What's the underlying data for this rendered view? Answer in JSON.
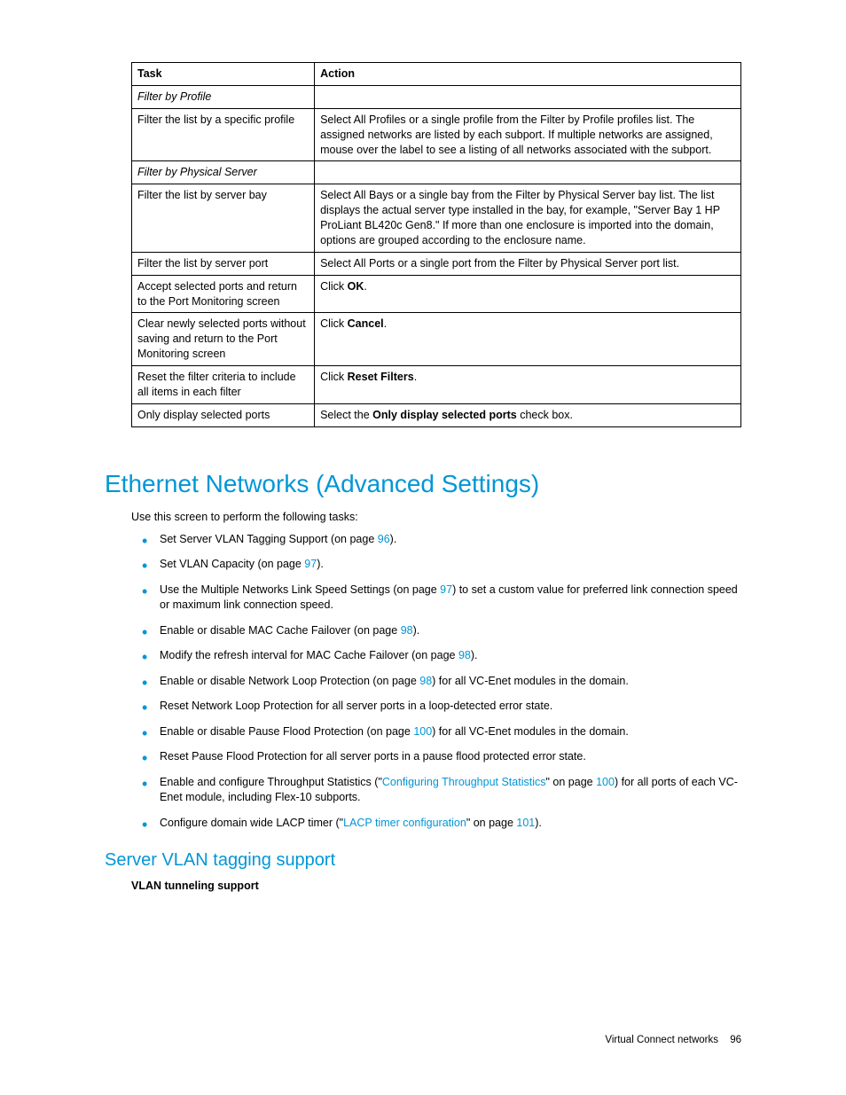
{
  "colors": {
    "accent": "#0096d6",
    "text": "#000000",
    "background": "#ffffff",
    "border": "#000000"
  },
  "typography": {
    "body_font_size_pt": 9.5,
    "h1_font_size_pt": 21,
    "h2_font_size_pt": 15,
    "font_family": "Arial"
  },
  "table": {
    "headers": {
      "task": "Task",
      "action": "Action"
    },
    "rows": [
      {
        "task": "Filter by Profile",
        "task_italic": true,
        "action": ""
      },
      {
        "task": "Filter the list by a specific profile",
        "action": "Select All Profiles or a single profile from the Filter by Profile profiles list. The assigned networks are listed by each subport. If multiple networks are assigned, mouse over the label to see a listing of all networks associated with the subport."
      },
      {
        "task": "Filter by Physical Server",
        "task_italic": true,
        "action": ""
      },
      {
        "task": "Filter the list by server bay",
        "action": "Select All Bays or a single bay from the Filter by Physical Server bay list. The list displays the actual server type installed in the bay, for example, \"Server Bay 1 HP ProLiant BL420c Gen8.\" If more than one enclosure is imported into the domain, options are grouped according to the enclosure name."
      },
      {
        "task": "Filter the list by server port",
        "action": "Select All Ports or a single port from the Filter by Physical Server port list."
      },
      {
        "task": "Accept selected ports and return to the Port Monitoring screen",
        "action_pre": "Click ",
        "action_bold": "OK",
        "action_post": "."
      },
      {
        "task": "Clear newly selected ports without saving and return to the Port Monitoring screen",
        "action_pre": "Click ",
        "action_bold": "Cancel",
        "action_post": "."
      },
      {
        "task": "Reset the filter criteria to include all items in each filter",
        "action_pre": "Click ",
        "action_bold": "Reset Filters",
        "action_post": "."
      },
      {
        "task": "Only display selected ports",
        "action_pre": "Select the ",
        "action_bold": "Only display selected ports",
        "action_post": " check box."
      }
    ]
  },
  "heading1": "Ethernet Networks (Advanced Settings)",
  "intro_text": "Use this screen to perform the following tasks:",
  "bullets": [
    {
      "parts": [
        {
          "t": "Set Server VLAN Tagging Support (on page "
        },
        {
          "t": "96",
          "link": true
        },
        {
          "t": ")."
        }
      ]
    },
    {
      "parts": [
        {
          "t": "Set VLAN Capacity (on page "
        },
        {
          "t": "97",
          "link": true
        },
        {
          "t": ")."
        }
      ]
    },
    {
      "parts": [
        {
          "t": "Use the Multiple Networks Link Speed Settings (on page "
        },
        {
          "t": "97",
          "link": true
        },
        {
          "t": ") to set a custom value for preferred link connection speed or maximum link connection speed."
        }
      ]
    },
    {
      "parts": [
        {
          "t": "Enable or disable MAC Cache Failover (on page "
        },
        {
          "t": "98",
          "link": true
        },
        {
          "t": ")."
        }
      ]
    },
    {
      "parts": [
        {
          "t": "Modify the refresh interval for MAC Cache Failover (on page "
        },
        {
          "t": "98",
          "link": true
        },
        {
          "t": ")."
        }
      ]
    },
    {
      "parts": [
        {
          "t": "Enable or disable Network Loop Protection (on page "
        },
        {
          "t": "98",
          "link": true
        },
        {
          "t": ") for all VC-Enet modules in the domain."
        }
      ]
    },
    {
      "parts": [
        {
          "t": "Reset Network Loop Protection for all server ports in a loop-detected error state."
        }
      ]
    },
    {
      "parts": [
        {
          "t": "Enable or disable Pause Flood Protection (on page "
        },
        {
          "t": "100",
          "link": true
        },
        {
          "t": ") for all VC-Enet modules in the domain."
        }
      ]
    },
    {
      "parts": [
        {
          "t": "Reset Pause Flood Protection for all server ports in a pause flood protected error state."
        }
      ]
    },
    {
      "parts": [
        {
          "t": "Enable and configure Throughput Statistics (\""
        },
        {
          "t": "Configuring Throughput Statistics",
          "link": true
        },
        {
          "t": "\" on page "
        },
        {
          "t": "100",
          "link": true
        },
        {
          "t": ") for all ports of each VC-Enet module, including Flex-10 subports."
        }
      ]
    },
    {
      "parts": [
        {
          "t": "Configure domain wide LACP timer (\""
        },
        {
          "t": "LACP timer configuration",
          "link": true
        },
        {
          "t": "\" on page "
        },
        {
          "t": "101",
          "link": true
        },
        {
          "t": ")."
        }
      ]
    }
  ],
  "heading2": "Server VLAN tagging support",
  "sub_bold": "VLAN tunneling support",
  "footer": {
    "section": "Virtual Connect networks",
    "page": "96"
  }
}
